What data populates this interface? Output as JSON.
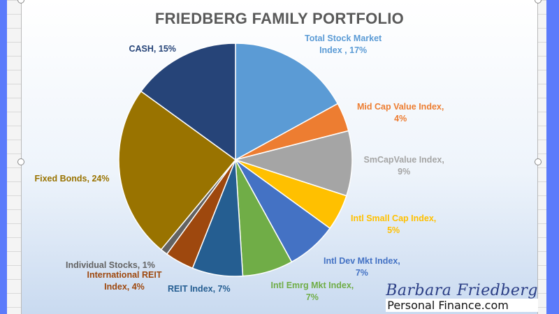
{
  "chart_data": {
    "type": "pie",
    "title": "FRIEDBERG FAMILY PORTFOLIO",
    "slices": [
      {
        "name": "Total Stock Market Index",
        "value": 17,
        "color": "#5b9bd5",
        "label_lines": [
          "Total Stock Market",
          "Index , 17%"
        ],
        "label_color": "#5b9bd5"
      },
      {
        "name": "Mid Cap Value Index",
        "value": 4,
        "color": "#ed7d31",
        "label_lines": [
          "Mid Cap Value Index,",
          "4%"
        ],
        "label_color": "#ed7d31"
      },
      {
        "name": "SmCapValue Index",
        "value": 9,
        "color": "#a5a5a5",
        "label_lines": [
          "SmCapValue Index,",
          "9%"
        ],
        "label_color": "#a5a5a5"
      },
      {
        "name": "Intl Small Cap Index",
        "value": 5,
        "color": "#ffc000",
        "label_lines": [
          "Intl Small Cap Index,",
          "5%"
        ],
        "label_color": "#ffc000"
      },
      {
        "name": "Intl Dev Mkt Index",
        "value": 7,
        "color": "#4472c4",
        "label_lines": [
          "Intl Dev Mkt Index,",
          "7%"
        ],
        "label_color": "#4472c4"
      },
      {
        "name": "Intl Emrg Mkt Index",
        "value": 7,
        "color": "#70ad47",
        "label_lines": [
          "Intl Emrg Mkt Index,",
          "7%"
        ],
        "label_color": "#70ad47"
      },
      {
        "name": "REIT Index",
        "value": 7,
        "color": "#255e91",
        "label_lines": [
          "REIT Index, 7%"
        ],
        "label_color": "#255e91"
      },
      {
        "name": "International REIT Index",
        "value": 4,
        "color": "#9e480e",
        "label_lines": [
          "International REIT",
          "Index, 4%"
        ],
        "label_color": "#9e480e"
      },
      {
        "name": "Individual Stocks",
        "value": 1,
        "color": "#636363",
        "label_lines": [
          "Individual Stocks, 1%"
        ],
        "label_color": "#636363"
      },
      {
        "name": "Fixed Bonds",
        "value": 24,
        "color": "#997300",
        "label_lines": [
          "Fixed Bonds, 24%"
        ],
        "label_color": "#997300"
      },
      {
        "name": "CASH",
        "value": 15,
        "color": "#264478",
        "label_lines": [
          "CASH, 15%"
        ],
        "label_color": "#264478"
      }
    ]
  },
  "watermark": {
    "line1": "Barbara Friedberg",
    "line2": "Personal Finance.com"
  }
}
